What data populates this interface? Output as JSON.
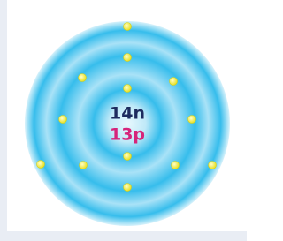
{
  "nucleus": {
    "neutrons": "14n",
    "protons": "13p"
  }
}
